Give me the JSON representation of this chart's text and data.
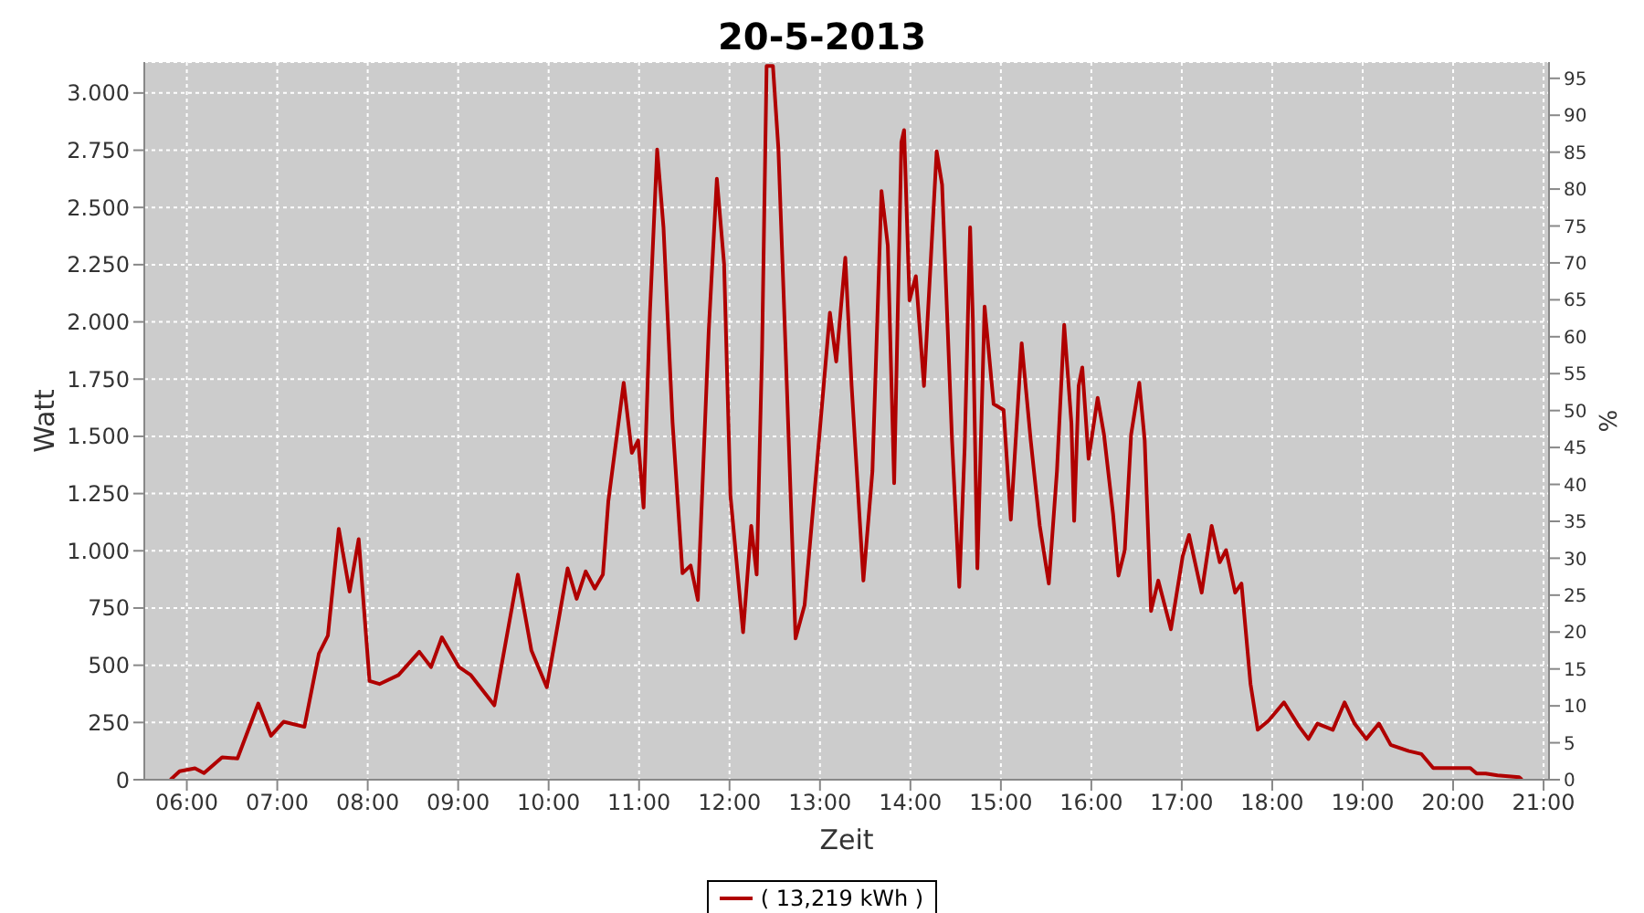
{
  "chart_data": {
    "type": "line",
    "title": "20-5-2013",
    "xlabel": "Zeit",
    "ylabel": "Watt",
    "y2label": "%",
    "xlim": [
      5.53,
      21.06
    ],
    "xticks": [
      {
        "value": 6,
        "label": "06:00"
      },
      {
        "value": 7,
        "label": "07:00"
      },
      {
        "value": 8,
        "label": "08:00"
      },
      {
        "value": 9,
        "label": "09:00"
      },
      {
        "value": 10,
        "label": "10:00"
      },
      {
        "value": 11,
        "label": "11:00"
      },
      {
        "value": 12,
        "label": "12:00"
      },
      {
        "value": 13,
        "label": "13:00"
      },
      {
        "value": 14,
        "label": "14:00"
      },
      {
        "value": 15,
        "label": "15:00"
      },
      {
        "value": 16,
        "label": "16:00"
      },
      {
        "value": 17,
        "label": "17:00"
      },
      {
        "value": 18,
        "label": "18:00"
      },
      {
        "value": 19,
        "label": "19:00"
      },
      {
        "value": 20,
        "label": "20:00"
      },
      {
        "value": 21,
        "label": "21:00"
      }
    ],
    "ylim": [
      0,
      3135
    ],
    "yticks": [
      0,
      250,
      500,
      750,
      {
        "value": 1000,
        "label": "1.000"
      },
      {
        "value": 1250,
        "label": "1.250"
      },
      {
        "value": 1500,
        "label": "1.500"
      },
      {
        "value": 1750,
        "label": "1.750"
      },
      {
        "value": 2000,
        "label": "2.000"
      },
      {
        "value": 2250,
        "label": "2.250"
      },
      {
        "value": 2500,
        "label": "2.500"
      },
      {
        "value": 2750,
        "label": "2.750"
      },
      {
        "value": 3000,
        "label": "3.000"
      }
    ],
    "y2lim": [
      0,
      97.2
    ],
    "y2ticks": [
      0,
      5,
      10,
      15,
      20,
      25,
      30,
      35,
      40,
      45,
      50,
      55,
      60,
      65,
      70,
      75,
      80,
      85,
      90,
      95
    ],
    "grid": true,
    "legend": "bottom",
    "marker": "none",
    "line_style": "solid",
    "x": [
      5.82,
      5.92,
      6.09,
      6.19,
      6.39,
      6.56,
      6.79,
      6.93,
      7.07,
      7.3,
      7.46,
      7.56,
      7.68,
      7.8,
      7.9,
      8.02,
      8.13,
      8.34,
      8.57,
      8.7,
      8.82,
      9.01,
      9.14,
      9.4,
      9.66,
      9.81,
      9.98,
      10.21,
      10.31,
      10.41,
      10.51,
      10.6,
      10.66,
      10.83,
      10.92,
      10.99,
      11.05,
      11.12,
      11.2,
      11.27,
      11.37,
      11.48,
      11.57,
      11.65,
      11.77,
      11.86,
      11.94,
      12.01,
      12.15,
      12.24,
      12.3,
      12.36,
      12.41,
      12.48,
      12.54,
      12.62,
      12.73,
      12.83,
      12.96,
      13.11,
      13.18,
      13.28,
      13.35,
      13.48,
      13.58,
      13.68,
      13.75,
      13.82,
      13.9,
      13.93,
      13.99,
      14.06,
      14.15,
      14.29,
      14.35,
      14.46,
      14.54,
      14.6,
      14.66,
      14.69,
      14.74,
      14.82,
      14.92,
      15.03,
      15.11,
      15.23,
      15.33,
      15.43,
      15.53,
      15.62,
      15.7,
      15.78,
      15.81,
      15.86,
      15.9,
      15.97,
      16.07,
      16.14,
      16.24,
      16.3,
      16.37,
      16.44,
      16.53,
      16.59,
      16.66,
      16.74,
      16.88,
      17.01,
      17.08,
      17.22,
      17.33,
      17.42,
      17.49,
      17.59,
      17.66,
      17.76,
      17.84,
      17.96,
      18.13,
      18.3,
      18.4,
      18.5,
      18.67,
      18.8,
      18.91,
      19.04,
      19.18,
      19.31,
      19.51,
      19.65,
      19.78,
      20.19,
      20.26,
      20.36,
      20.49,
      20.73,
      20.76
    ],
    "series": [
      {
        "name": "( 13,219 kWh )",
        "color": "#b00000",
        "values": [
          0,
          37,
          50,
          29,
          98,
          93,
          333,
          192,
          253,
          231,
          551,
          630,
          1096,
          822,
          1051,
          431,
          418,
          457,
          559,
          492,
          622,
          492,
          457,
          325,
          896,
          564,
          404,
          923,
          790,
          910,
          835,
          896,
          1216,
          1734,
          1428,
          1482,
          1189,
          2040,
          2753,
          2413,
          1561,
          902,
          936,
          785,
          1960,
          2625,
          2253,
          1242,
          644,
          1109,
          896,
          1880,
          3118,
          3118,
          2759,
          1880,
          617,
          763,
          1349,
          2040,
          1827,
          2280,
          1720,
          870,
          1349,
          2572,
          2333,
          1295,
          2785,
          2838,
          2094,
          2200,
          1720,
          2745,
          2599,
          1482,
          843,
          1455,
          2413,
          2013,
          923,
          2067,
          1641,
          1615,
          1136,
          1907,
          1482,
          1109,
          857,
          1349,
          1987,
          1556,
          1131,
          1721,
          1801,
          1402,
          1668,
          1508,
          1162,
          891,
          1003,
          1508,
          1734,
          1482,
          737,
          870,
          657,
          976,
          1069,
          817,
          1109,
          950,
          1003,
          817,
          857,
          418,
          218,
          258,
          338,
          231,
          178,
          245,
          218,
          338,
          245,
          178,
          245,
          152,
          125,
          112,
          51,
          51,
          27,
          27,
          19,
          11,
          0
        ]
      }
    ]
  }
}
